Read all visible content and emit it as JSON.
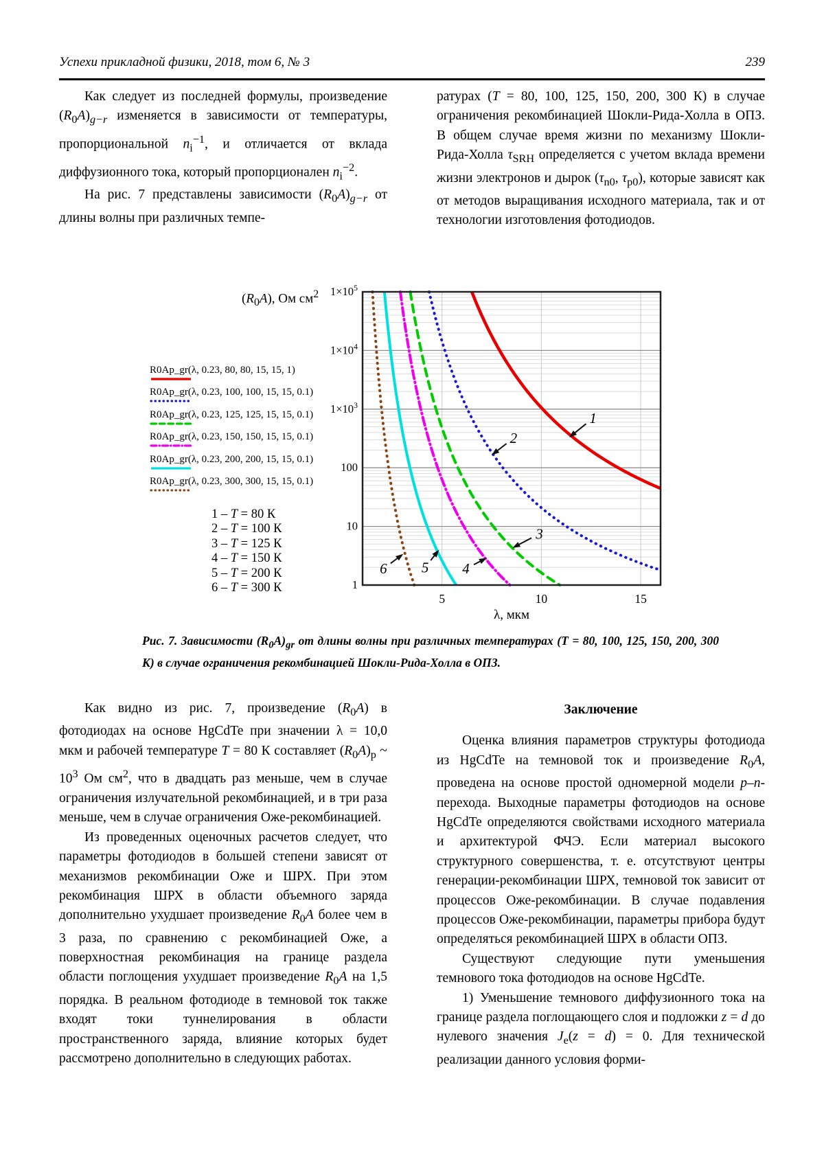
{
  "page": {
    "header": {
      "journal": "Успехи прикладной физики, 2018, том 6, № 3",
      "page_number": "239"
    },
    "columns_top": {
      "left": [
        "Как следует из последней формулы, произведение (<i>R</i><sub>0</sub><i>A</i>)<sub><i>g−r</i></sub> изменяется в зависимости от температуры, пропорциональной <i>n</i><sub>i</sub><sup>−1</sup>, и отличается от вклада диффузионного тока, который пропорционален <i>n</i><sub>i</sub><sup>−2</sup>.",
        "На рис. 7 представлены зависимости (<i>R</i><sub>0</sub><i>A</i>)<sub><i>g−r</i></sub> от длины волны при различных темпе-"
      ],
      "right": [
        "ратурах (<i>T</i> = 80, 100, 125, 150, 200, 300 К) в случае ограничения рекомбинацией Шокли-Рида-Холла в ОПЗ. В общем случае время жизни по механизму Шокли-Рида-Холла <i>τ</i><sub>SRH</sub> определяется с учетом вклада времени жизни электронов и дырок (<i>τ</i><sub>n0</sub>, <i>τ</i><sub>p0</sub>), которые зависят как от методов выращивания исходного материала, так и от технологии изготовления фотодиодов."
      ]
    },
    "figure": {
      "caption_html": "Рис. 7. Зависимости (R<sub>0</sub>A)<sub>gr</sub> от длины волны при различных температурах (Т = 80, 100, 125, 150, 200, 300 К) в случае ограничения рекомбинацией Шокли-Рида-Холла в ОПЗ.",
      "temp_key": [
        "1 – <i>T</i> = 80 К",
        "2 – <i>T</i> = 100 К",
        "3 – <i>T</i> = 125 К",
        "4 – <i>T</i> = 150 К",
        "5 – <i>T</i> = 200 К",
        "6 – <i>T</i> = 300 К"
      ]
    },
    "columns_bottom": {
      "left": [
        "Как видно из рис. 7, произведение (<i>R</i><sub>0</sub><i>A</i>) в фотодиодах на основе HgCdTe при значении λ = 10,0 мкм и рабочей температуре <i>T</i> = 80 К составляет (<i>R</i><sub>0</sub><i>A</i>)<sub>p</sub> ~ 10<sup>3</sup> Ом см<sup>2</sup>, что в двадцать раз меньше, чем в случае ограничения излучательной рекомбинацией, и в три раза меньше, чем в случае ограничения Оже-рекомбинацией.",
        "Из проведенных оценочных расчетов следует, что параметры фотодиодов в большей степени зависят от механизмов рекомбинации Оже и ШРХ. При этом рекомбинация ШРХ в области объемного заряда дополнительно ухудшает произведение <i>R</i><sub>0</sub><i>A</i> более чем в 3 раза, по сравнению с рекомбинацией Оже, а поверхностная рекомбинация на границе раздела области поглощения ухудшает произведение <i>R</i><sub>0</sub><i>A</i> на 1,5 порядка. В реальном фотодиоде в темновой ток также входят токи туннелирования в области пространственного заряда, влияние которых будет рассмотрено дополнительно в следующих работах."
      ],
      "right_heading": "Заключение",
      "right": [
        "Оценка влияния параметров структуры фотодиода из HgCdTe на темновой ток и произведение <i>R</i><sub>0</sub><i>A</i>, проведена на основе простой одномерной модели <i>p</i>–<i>n</i>-перехода. Выходные параметры фотодиодов на основе HgCdTe определяются свойствами исходного материала и архитектурой ФЧЭ. Если материал высокого структурного совершенства, т. е. отсутствуют центры генерации-рекомбинации ШРХ, темновой ток зависит от процессов Оже-рекомбинации. В случае подавления процессов Оже-рекомбинации, параметры прибора будут определяться рекомбинацией ШРХ в области ОПЗ.",
        "Существуют следующие пути уменьшения темнового тока фотодиодов на основе HgCdTe.",
        "1) Уменьшение темнового диффузионного тока на границе раздела поглощающего слоя и подложки <i>z</i> = <i>d</i> до нулевого значения <i>J</i><sub>e</sub>(<i>z</i> = <i>d</i>) = 0. Для технической реализации данного условия форми-"
      ]
    }
  },
  "chart_data": {
    "type": "line",
    "title_html": "(<i>R</i><sub>0</sub><i>A</i>), Ом см<sup>2</sup>",
    "xlabel": "λ, мкм",
    "x_range": [
      1,
      16
    ],
    "x_ticks": [
      5,
      10,
      15
    ],
    "y_scale": "log10",
    "y_range": [
      1,
      100000
    ],
    "y_tick_labels": [
      "1×10^5",
      "1×10^4",
      "1×10^3",
      "100",
      "10",
      "1"
    ],
    "grid": true,
    "legend_position": "left-outside",
    "series": [
      {
        "curve": 1,
        "label": "R0Ap_gr(λ, 0.23, 80, 80, 15, 15, 1)",
        "temperature_K": 80,
        "color": "#e60000",
        "style": "solid",
        "width": 4.5,
        "model_log10R": {
          "A": 36.7,
          "B": 0.646
        },
        "lambda_at_R_1e5": 6.5,
        "lambda_at_R_1": 56.8,
        "R_at_lambda_16": 45
      },
      {
        "curve": 2,
        "label": "R0Ap_gr(λ, 0.23, 100, 100, 15, 15, 0.1)",
        "temperature_K": 100,
        "color": "#1a1acd",
        "style": "dotted",
        "width": 4,
        "model_log10R": {
          "A": 28.38,
          "B": 1.52
        },
        "lambda_at_R_1e5": 4.35,
        "lambda_at_R_1": 18.7,
        "R_at_lambda_16": 1.8
      },
      {
        "curve": 3,
        "label": "R0Ap_gr(λ, 0.23, 125, 125, 15, 15, 0.1)",
        "temperature_K": 125,
        "color": "#00cc00",
        "style": "dashed",
        "width": 4,
        "model_log10R": {
          "A": 24.7,
          "B": 2.26
        },
        "lambda_at_R_1e5": 3.4,
        "lambda_at_R_1": 10.9
      },
      {
        "curve": 4,
        "label": "R0Ap_gr(λ, 0.23, 150, 150, 15, 15, 0.1)",
        "temperature_K": 150,
        "color": "#ee00ee",
        "style": "dashdot",
        "width": 4,
        "model_log10R": {
          "A": 22.14,
          "B": 2.63
        },
        "lambda_at_R_1e5": 2.9,
        "lambda_at_R_1": 8.4
      },
      {
        "curve": 5,
        "label": "R0Ap_gr(λ, 0.23, 200, 200, 15, 15, 0.1)",
        "temperature_K": 200,
        "color": "#00e0e0",
        "style": "solid",
        "width": 4,
        "model_log10R": {
          "A": 16.62,
          "B": 2.91
        },
        "lambda_at_R_1e5": 2.1,
        "lambda_at_R_1": 5.7
      },
      {
        "curve": 6,
        "label": "R0Ap_gr(λ, 0.23, 300, 300, 15, 15, 0.1)",
        "temperature_K": 300,
        "color": "#8b4513",
        "style": "dotted",
        "width": 4,
        "model_log10R": {
          "A": 12.86,
          "B": 3.57
        },
        "lambda_at_R_1e5": 1.5,
        "lambda_at_R_1": 3.6
      }
    ],
    "curve_annotations": [
      {
        "n": "1",
        "label_at": [
          12.6,
          700
        ],
        "arrow_tip_at": [
          11.4,
          330
        ]
      },
      {
        "n": "2",
        "label_at": [
          8.6,
          320
        ],
        "arrow_tip_at": [
          7.5,
          165
        ]
      },
      {
        "n": "3",
        "label_at": [
          9.9,
          7.5
        ],
        "arrow_tip_at": [
          8.55,
          4.3
        ]
      },
      {
        "n": "4",
        "label_at": [
          6.2,
          1.9
        ],
        "arrow_tip_at": [
          7.25,
          2.9
        ]
      },
      {
        "n": "5",
        "label_at": [
          4.15,
          2.0
        ],
        "arrow_tip_at": [
          4.85,
          4.0
        ]
      },
      {
        "n": "6",
        "label_at": [
          2.05,
          1.9
        ],
        "arrow_tip_at": [
          3.05,
          3.4
        ]
      }
    ]
  }
}
